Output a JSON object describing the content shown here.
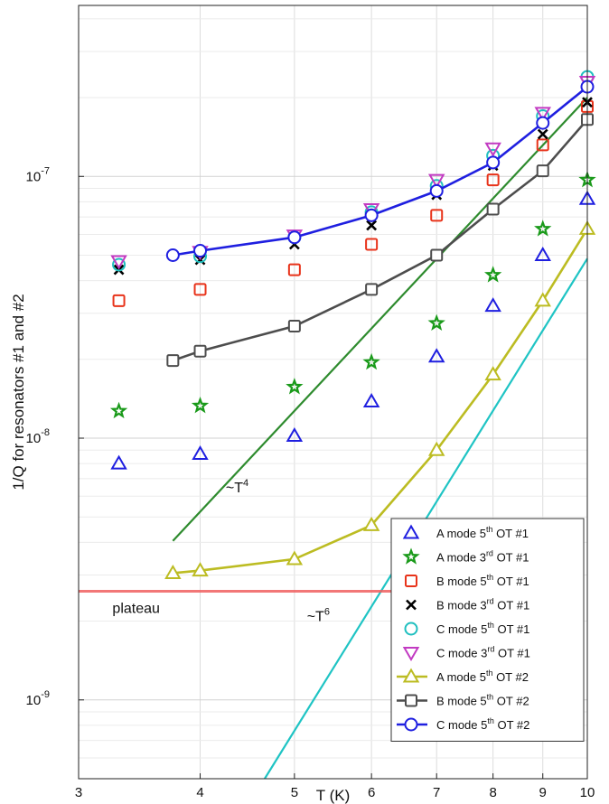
{
  "chart_data": {
    "type": "scatter",
    "title": "",
    "xlabel": "T (K)",
    "ylabel": "1/Q for resonators #1 and #2",
    "xscale": "log",
    "yscale": "log",
    "xlim": [
      3,
      10
    ],
    "ylim": [
      5e-10,
      4.5e-07
    ],
    "x_ticks": [
      {
        "value": 3,
        "label": "3"
      },
      {
        "value": 4,
        "label": "4"
      },
      {
        "value": 5,
        "label": "5"
      },
      {
        "value": 6,
        "label": "6"
      },
      {
        "value": 7,
        "label": "7"
      },
      {
        "value": 8,
        "label": "8"
      },
      {
        "value": 9,
        "label": "9"
      },
      {
        "value": 10,
        "label": "10"
      }
    ],
    "y_ticks": [
      {
        "value": 1e-09,
        "base": "10",
        "exp": "-9"
      },
      {
        "value": 1e-08,
        "base": "10",
        "exp": "-8"
      },
      {
        "value": 1e-07,
        "base": "10",
        "exp": "-7"
      }
    ],
    "grid": true,
    "legend_position": "bottom-right",
    "series": [
      {
        "name": "A mode 5th OT #1",
        "base": "A mode 5",
        "sup": "th",
        "tail": " OT #1",
        "marker": "triangle-up",
        "color": "#1f1fe0",
        "line": false,
        "x": [
          3.3,
          4,
          5,
          6,
          7,
          8,
          9,
          10
        ],
        "y": [
          8e-09,
          8.7e-09,
          1.02e-08,
          1.38e-08,
          2.05e-08,
          3.2e-08,
          5e-08,
          8.2e-08
        ]
      },
      {
        "name": "A mode 3rd OT #1",
        "base": "A mode 3",
        "sup": "rd",
        "tail": " OT #1",
        "marker": "star",
        "color": "#1a9a1a",
        "line": false,
        "x": [
          3.3,
          4,
          5,
          6,
          7,
          8,
          9,
          10
        ],
        "y": [
          1.27e-08,
          1.33e-08,
          1.57e-08,
          1.95e-08,
          2.75e-08,
          4.2e-08,
          6.3e-08,
          9.7e-08
        ]
      },
      {
        "name": "B mode 5th OT #1",
        "base": "B mode 5",
        "sup": "th",
        "tail": " OT #1",
        "marker": "square",
        "color": "#e8331a",
        "line": false,
        "x": [
          3.3,
          4,
          5,
          6,
          7,
          8,
          9,
          10
        ],
        "y": [
          3.35e-08,
          3.7e-08,
          4.4e-08,
          5.5e-08,
          7.1e-08,
          9.7e-08,
          1.32e-07,
          1.85e-07
        ]
      },
      {
        "name": "B mode 3rd OT #1",
        "base": "B mode 3",
        "sup": "rd",
        "tail": " OT #1",
        "marker": "x",
        "color": "#000000",
        "line": false,
        "x": [
          3.3,
          4,
          5,
          6,
          7,
          8,
          9,
          10
        ],
        "y": [
          4.4e-08,
          4.8e-08,
          5.5e-08,
          6.5e-08,
          8.5e-08,
          1.1e-07,
          1.45e-07,
          1.92e-07
        ]
      },
      {
        "name": "C mode 5th OT #1",
        "base": "C mode 5",
        "sup": "th",
        "tail": " OT #1",
        "marker": "circle",
        "color": "#1fbfbf",
        "line": false,
        "x": [
          3.3,
          4,
          5,
          6,
          7,
          8,
          9,
          10
        ],
        "y": [
          4.6e-08,
          4.95e-08,
          5.85e-08,
          7.3e-08,
          9.2e-08,
          1.2e-07,
          1.7e-07,
          2.4e-07
        ]
      },
      {
        "name": "C mode 3rd OT #1",
        "base": "C mode 3",
        "sup": "rd",
        "tail": " OT #1",
        "marker": "triangle-down",
        "color": "#c23ac2",
        "line": false,
        "x": [
          3.3,
          4,
          5,
          6,
          7,
          8,
          9,
          10
        ],
        "y": [
          4.75e-08,
          5.15e-08,
          5.95e-08,
          7.5e-08,
          9.7e-08,
          1.28e-07,
          1.75e-07,
          2.3e-07
        ]
      },
      {
        "name": "A mode 5th OT #2",
        "base": "A mode 5",
        "sup": "th",
        "tail": " OT #2",
        "marker": "triangle-up",
        "color": "#bcbc22",
        "line": true,
        "x": [
          3.75,
          4,
          5,
          6,
          7,
          8,
          9,
          10
        ],
        "y": [
          3.05e-09,
          3.12e-09,
          3.45e-09,
          4.65e-09,
          9e-09,
          1.75e-08,
          3.35e-08,
          6.3e-08
        ]
      },
      {
        "name": "B mode 5th OT #2",
        "base": "B mode 5",
        "sup": "th",
        "tail": " OT #2",
        "marker": "square",
        "color": "#4d4d4d",
        "line": true,
        "x": [
          3.75,
          4,
          5,
          6,
          7,
          8,
          9,
          10
        ],
        "y": [
          1.98e-08,
          2.15e-08,
          2.68e-08,
          3.7e-08,
          5e-08,
          7.5e-08,
          1.05e-07,
          1.65e-07
        ]
      },
      {
        "name": "C mode 5th OT #2",
        "base": "C mode 5",
        "sup": "th",
        "tail": " OT #2",
        "marker": "circle",
        "color": "#1f1fe0",
        "line": true,
        "x": [
          3.75,
          4,
          5,
          6,
          7,
          8,
          9,
          10
        ],
        "y": [
          5e-08,
          5.2e-08,
          5.85e-08,
          7.1e-08,
          8.8e-08,
          1.13e-07,
          1.6e-07,
          2.2e-07
        ]
      }
    ],
    "reference_lines": [
      {
        "label": "~T",
        "exp": "4",
        "color": "#2e8b2e",
        "x": [
          3.75,
          10
        ],
        "y": [
          4.05e-09,
          2e-07
        ]
      },
      {
        "label": "~T",
        "exp": "6",
        "color": "#1fc4c4",
        "x": [
          4.66,
          10
        ],
        "y": [
          5e-10,
          4.85e-08
        ]
      },
      {
        "label": "plateau",
        "color": "#f06060",
        "x": [
          3,
          6.5
        ],
        "y": [
          2.6e-09,
          2.6e-09
        ]
      }
    ]
  }
}
